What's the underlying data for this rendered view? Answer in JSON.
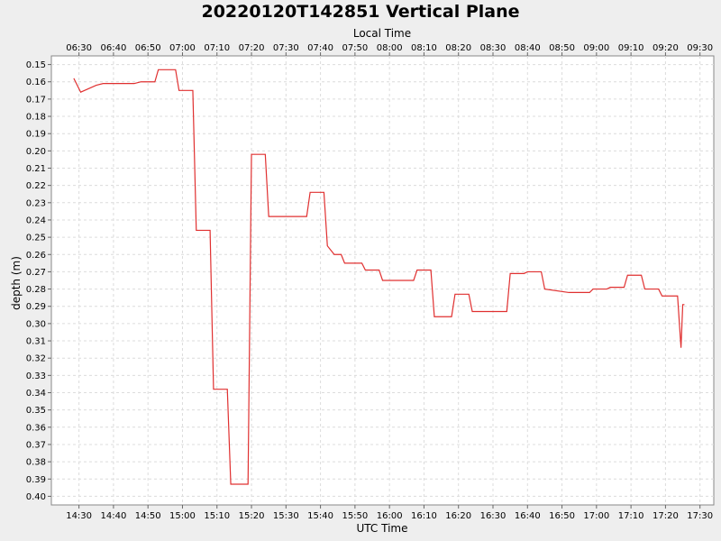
{
  "chart_data": {
    "type": "line",
    "title": "20220120T142851 Vertical Plane",
    "xlabel": "UTC Time",
    "x2label": "Local Time",
    "ylabel": "depth (m)",
    "y_inverted": true,
    "grid": true,
    "line_color": "#e03030",
    "xlim": [
      "14:22",
      "17:34"
    ],
    "ylim": [
      0.145,
      0.405
    ],
    "x_ticks": [
      "14:30",
      "14:40",
      "14:50",
      "15:00",
      "15:10",
      "15:20",
      "15:30",
      "15:40",
      "15:50",
      "16:00",
      "16:10",
      "16:20",
      "16:30",
      "16:40",
      "16:50",
      "17:00",
      "17:10",
      "17:20",
      "17:30"
    ],
    "x2_ticks": [
      "06:30",
      "06:40",
      "06:50",
      "07:00",
      "07:10",
      "07:20",
      "07:30",
      "07:40",
      "07:50",
      "08:00",
      "08:10",
      "08:20",
      "08:30",
      "08:40",
      "08:50",
      "09:00",
      "09:10",
      "09:20",
      "09:30"
    ],
    "y_ticks": [
      "0.15",
      "0.16",
      "0.17",
      "0.18",
      "0.19",
      "0.20",
      "0.21",
      "0.22",
      "0.23",
      "0.24",
      "0.25",
      "0.26",
      "0.27",
      "0.28",
      "0.29",
      "0.30",
      "0.31",
      "0.32",
      "0.33",
      "0.34",
      "0.35",
      "0.36",
      "0.37",
      "0.38",
      "0.39",
      "0.40"
    ],
    "series": [
      {
        "x": [
          "14:28.5",
          "14:30.5",
          "14:35",
          "14:37",
          "14:46",
          "14:48",
          "14:52",
          "14:53",
          "14:58",
          "14:59",
          "15:03",
          "15:04",
          "15:08",
          "15:09",
          "15:13",
          "15:14",
          "15:19",
          "15:20",
          "15:24",
          "15:25",
          "15:36",
          "15:37",
          "15:41",
          "15:42",
          "15:44",
          "15:46",
          "15:47",
          "15:52",
          "15:53",
          "15:57",
          "15:58",
          "16:02",
          "16:03",
          "16:07",
          "16:08",
          "16:12",
          "16:13",
          "16:18",
          "16:19",
          "16:23",
          "16:24",
          "16:34",
          "16:35",
          "16:39",
          "16:40",
          "16:44",
          "16:45",
          "16:52",
          "16:58",
          "16:59",
          "17:03",
          "17:04",
          "17:08",
          "17:09",
          "17:13",
          "17:14",
          "17:18",
          "17:19",
          "17:23.5",
          "17:24.5",
          "17:25",
          "17:25.5"
        ],
        "y": [
          0.158,
          0.166,
          0.162,
          0.161,
          0.161,
          0.16,
          0.16,
          0.153,
          0.153,
          0.165,
          0.165,
          0.246,
          0.246,
          0.338,
          0.338,
          0.393,
          0.393,
          0.202,
          0.202,
          0.238,
          0.238,
          0.224,
          0.224,
          0.255,
          0.26,
          0.26,
          0.265,
          0.265,
          0.269,
          0.269,
          0.275,
          0.275,
          0.275,
          0.275,
          0.269,
          0.269,
          0.296,
          0.296,
          0.283,
          0.283,
          0.293,
          0.293,
          0.271,
          0.271,
          0.27,
          0.27,
          0.28,
          0.282,
          0.282,
          0.28,
          0.28,
          0.279,
          0.279,
          0.272,
          0.272,
          0.28,
          0.28,
          0.284,
          0.284,
          0.314,
          0.289,
          0.289
        ]
      }
    ]
  }
}
